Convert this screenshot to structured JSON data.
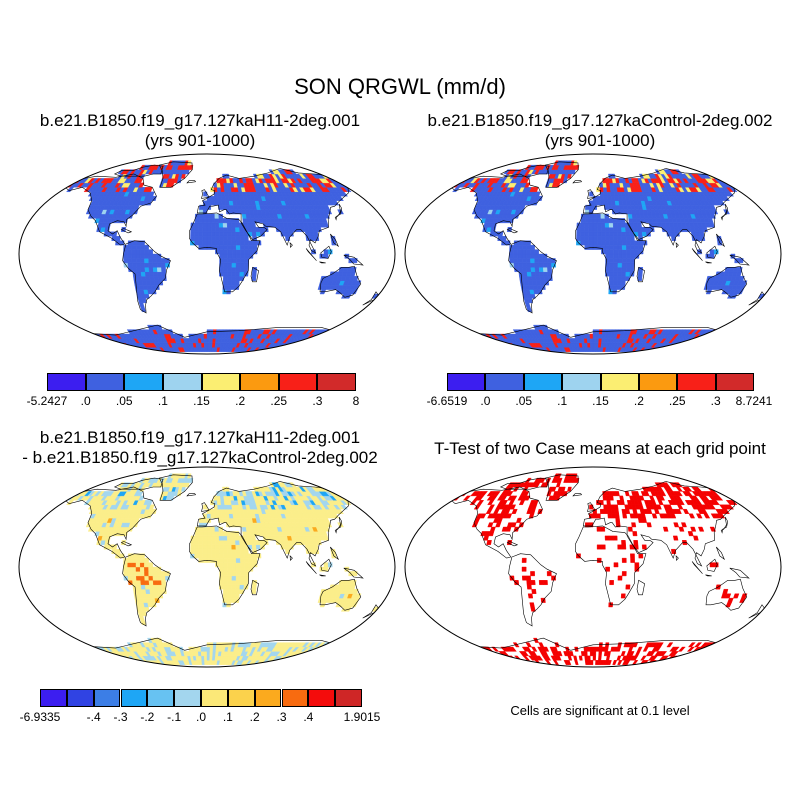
{
  "figure": {
    "title": "SON QRGWL (mm/d)"
  },
  "panels": [
    {
      "id": "case1",
      "title_line1": "b.e21.B1850.f19_g17.127kaH11-2deg.001",
      "title_line2": "(yrs 901-1000)"
    },
    {
      "id": "case2",
      "title_line1": "b.e21.B1850.f19_g17.127kaControl-2deg.002",
      "title_line2": "(yrs 901-1000)"
    },
    {
      "id": "diff",
      "title_line1": "b.e21.B1850.f19_g17.127kaH11-2deg.001",
      "title_line2": "- b.e21.B1850.f19_g17.127kaControl-2deg.002"
    },
    {
      "id": "ttest",
      "title_line1": "T-Test of two Case means at each grid point",
      "note": "Cells are significant at 0.1 level"
    }
  ],
  "colorbars": {
    "case1": {
      "colors": [
        "#3c1ef0",
        "#3f61e0",
        "#1ea6f5",
        "#9ed3ef",
        "#fbee72",
        "#fb9a10",
        "#f82018",
        "#d22a2a"
      ],
      "labels": [
        "-5.2427",
        ".0",
        ".05",
        ".1",
        ".15",
        ".2",
        ".25",
        ".3",
        "8"
      ]
    },
    "case2": {
      "colors": [
        "#3c1ef0",
        "#3f61e0",
        "#1ea6f5",
        "#9ed3ef",
        "#fbee72",
        "#fb9a10",
        "#f82018",
        "#d22a2a"
      ],
      "labels": [
        "-6.6519",
        ".0",
        ".05",
        ".1",
        ".15",
        ".2",
        ".25",
        ".3",
        "8.7241"
      ]
    },
    "diff": {
      "colors": [
        "#3c1ef0",
        "#3043e3",
        "#3c7ee6",
        "#1ea6f5",
        "#67c2f2",
        "#a3d6ee",
        "#fbe878",
        "#fbd24c",
        "#fbaa1e",
        "#f86b10",
        "#f40c0c",
        "#cf2626"
      ],
      "labels": [
        "-6.9335",
        "",
        "-.4",
        "-.3",
        "-.2",
        "-.1",
        ".0",
        ".1",
        ".2",
        ".3",
        ".4",
        "",
        "1.9015"
      ]
    }
  },
  "map_colors": {
    "ocean": "#ffffff",
    "land_case": "#3f61e0",
    "land_diff": "#fbee8a",
    "significant": "#f40000"
  }
}
